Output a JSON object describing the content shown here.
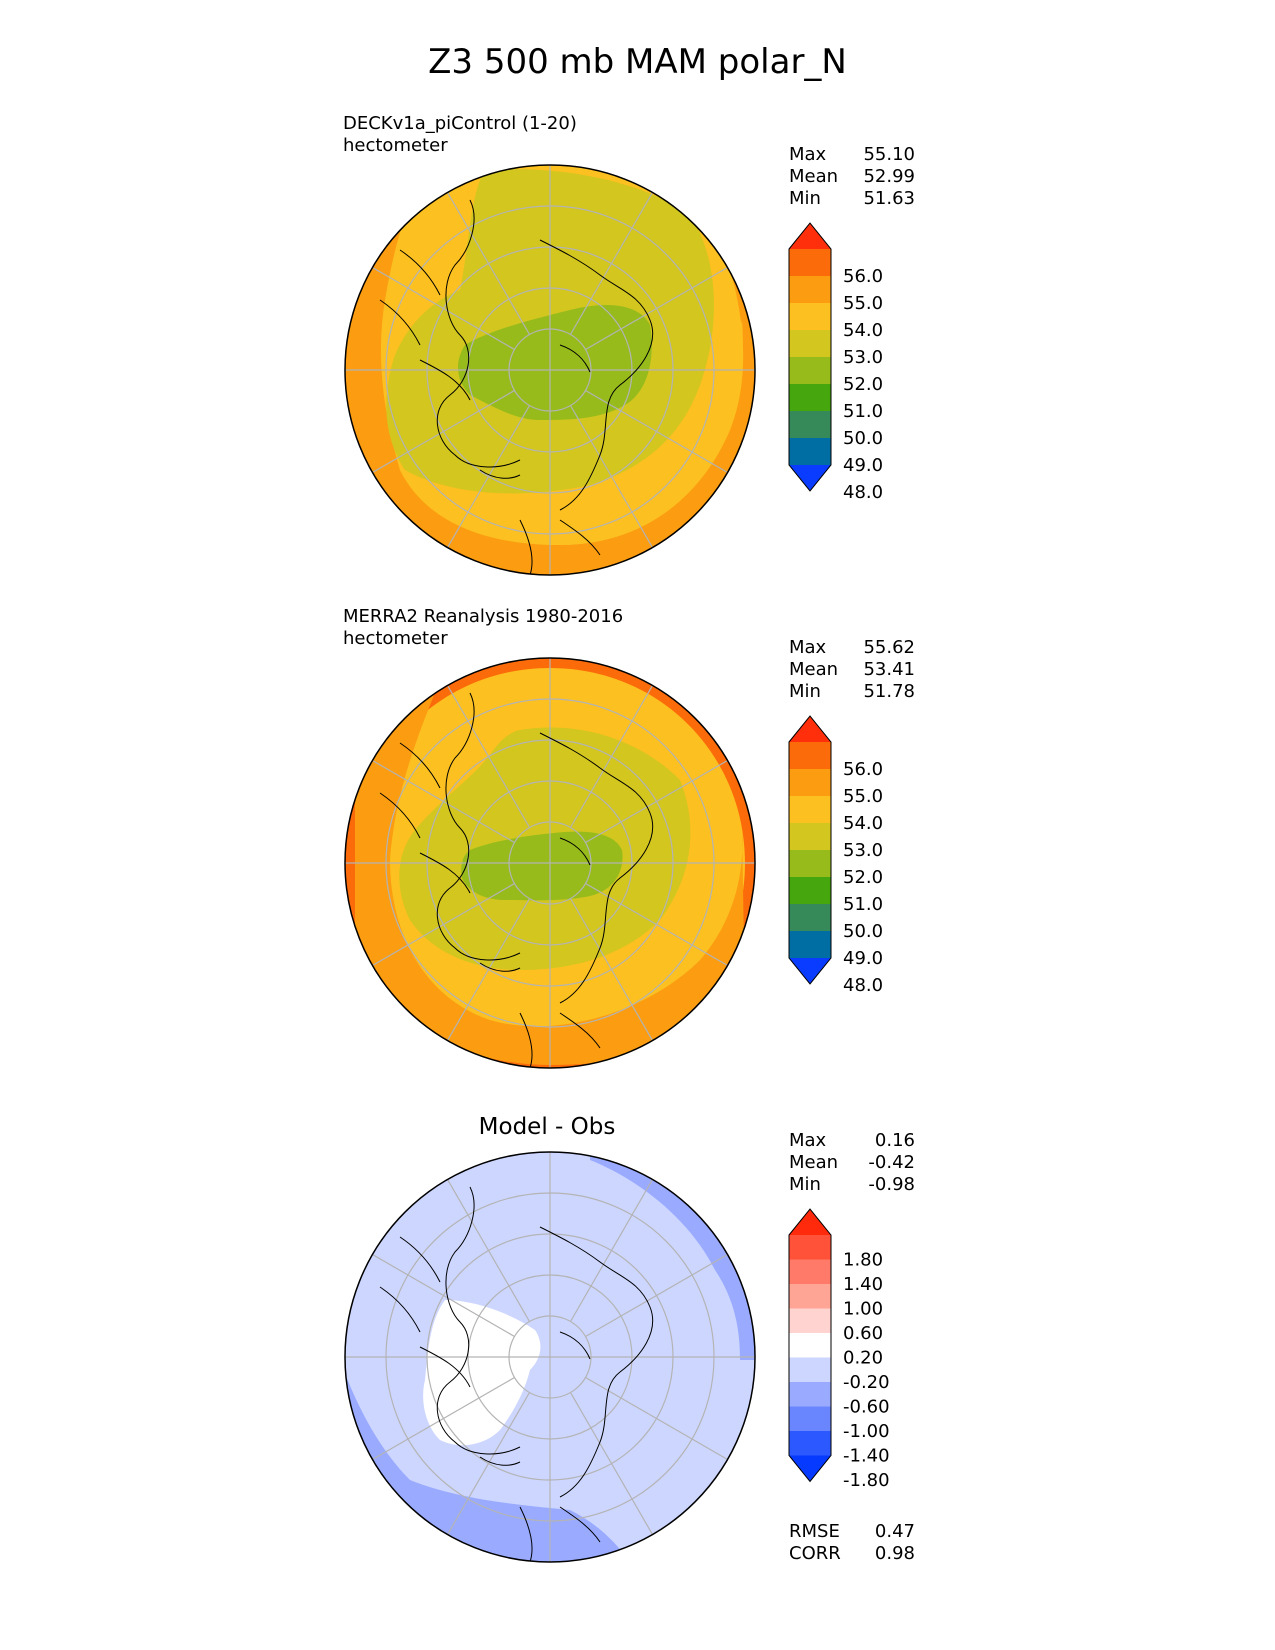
{
  "title": "Z3 500 mb MAM polar_N",
  "palette_full": [
    "#0a3cff",
    "#006ea3",
    "#368a5a",
    "#46a60d",
    "#96bb1b",
    "#d2c61f",
    "#fcc020",
    "#fb9c11",
    "#fb6b0a",
    "#ff2f0b"
  ],
  "palette_diff": [
    "#073aff",
    "#2b58ff",
    "#6986ff",
    "#9aabff",
    "#cdd6ff",
    "#ffffff",
    "#ffd4d0",
    "#ffa596",
    "#ff7a68",
    "#ff5239",
    "#ff2a0b"
  ],
  "colors": {
    "grid": "#b4b4b4",
    "coast": "#000000"
  },
  "panels": [
    {
      "subtitle_line1": "DECKv1a_piControl (1-20)",
      "subtitle_line2": "hectometer",
      "stats": [
        {
          "label": "Max",
          "value": "55.10"
        },
        {
          "label": "Mean",
          "value": "52.99"
        },
        {
          "label": "Min",
          "value": "51.63"
        }
      ]
    },
    {
      "subtitle_line1": "MERRA2 Reanalysis 1980-2016",
      "subtitle_line2": "hectometer",
      "stats": [
        {
          "label": "Max",
          "value": "55.62"
        },
        {
          "label": "Mean",
          "value": "53.41"
        },
        {
          "label": "Min",
          "value": "51.78"
        }
      ]
    },
    {
      "title": "Model - Obs",
      "stats": [
        {
          "label": "Max",
          "value": "0.16"
        },
        {
          "label": "Mean",
          "value": "-0.42"
        },
        {
          "label": "Min",
          "value": "-0.98"
        }
      ],
      "metrics": [
        {
          "label": "RMSE",
          "value": "0.47"
        },
        {
          "label": "CORR",
          "value": "0.98"
        }
      ]
    }
  ],
  "chart_data": [
    {
      "type": "heatmap",
      "projection": "north polar stereographic",
      "variable": "Z3 500 mb MAM polar_N",
      "units": "hectometer",
      "colorbar_ticks": [
        "56.0",
        "55.0",
        "54.0",
        "53.0",
        "52.0",
        "51.0",
        "50.0",
        "49.0",
        "48.0"
      ],
      "levels": [
        47.5,
        48.5,
        49.5,
        50.5,
        51.5,
        52.5,
        53.5,
        54.5,
        55.5,
        56.5
      ],
      "max": 55.1,
      "mean": 52.99,
      "min": 51.63
    },
    {
      "type": "heatmap",
      "projection": "north polar stereographic",
      "units": "hectometer",
      "colorbar_ticks": [
        "56.0",
        "55.0",
        "54.0",
        "53.0",
        "52.0",
        "51.0",
        "50.0",
        "49.0",
        "48.0"
      ],
      "levels": [
        47.5,
        48.5,
        49.5,
        50.5,
        51.5,
        52.5,
        53.5,
        54.5,
        55.5,
        56.5
      ],
      "max": 55.62,
      "mean": 53.41,
      "min": 51.78
    },
    {
      "type": "heatmap",
      "projection": "north polar stereographic",
      "colorbar_ticks": [
        "1.80",
        "1.40",
        "1.00",
        "0.60",
        "0.20",
        "-0.20",
        "-0.60",
        "-1.00",
        "-1.40",
        "-1.80"
      ],
      "levels": [
        -1.8,
        -1.4,
        -1.0,
        -0.6,
        -0.2,
        0.2,
        0.6,
        1.0,
        1.4,
        1.8
      ],
      "max": 0.16,
      "mean": -0.42,
      "min": -0.98,
      "rmse": 0.47,
      "corr": 0.98
    }
  ]
}
